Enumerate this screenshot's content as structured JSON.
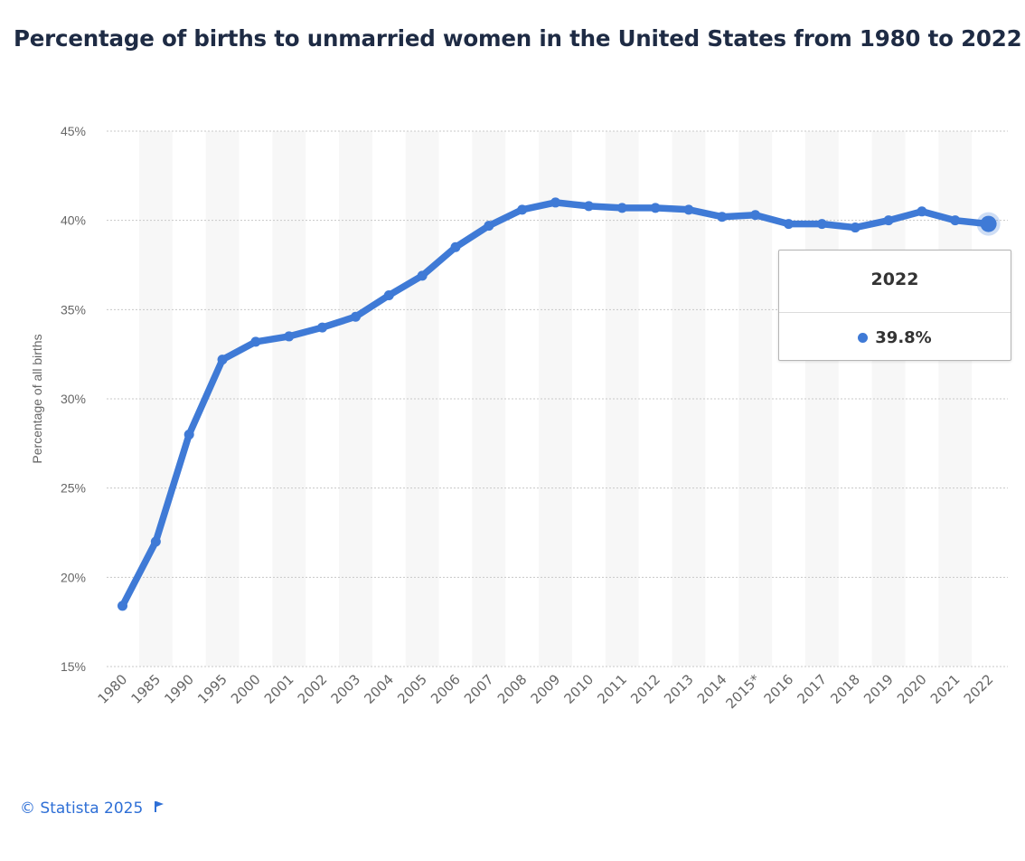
{
  "page": {
    "title": "Percentage of births to unmarried women in the United States from 1980 to 2022"
  },
  "chart_data": {
    "type": "line",
    "title": "Percentage of births to unmarried women in the United States from 1980 to 2022",
    "xlabel": "",
    "ylabel": "Percentage of all births",
    "ylim": [
      15,
      45
    ],
    "yticks": [
      15,
      20,
      25,
      30,
      35,
      40,
      45
    ],
    "ytick_labels": [
      "15%",
      "20%",
      "25%",
      "30%",
      "35%",
      "40%",
      "45%"
    ],
    "grid": true,
    "categories": [
      "1980",
      "1985",
      "1990",
      "1995",
      "2000",
      "2001",
      "2002",
      "2003",
      "2004",
      "2005",
      "2006",
      "2007",
      "2008",
      "2009",
      "2010",
      "2011",
      "2012",
      "2013",
      "2014",
      "2015*",
      "2016",
      "2017",
      "2018",
      "2019",
      "2020",
      "2021",
      "2022"
    ],
    "series": [
      {
        "name": "Percentage of all births",
        "values": [
          18.4,
          22.0,
          28.0,
          32.2,
          33.2,
          33.5,
          34.0,
          34.6,
          35.8,
          36.9,
          38.5,
          39.7,
          40.6,
          41.0,
          40.8,
          40.7,
          40.7,
          40.6,
          40.2,
          40.3,
          39.8,
          39.8,
          39.6,
          40.0,
          40.5,
          40.0,
          39.8
        ]
      }
    ],
    "highlight_index": 26
  },
  "tooltip": {
    "year": "2022",
    "value": "39.8%"
  },
  "footer": {
    "credit": "© Statista 2025"
  },
  "colors": {
    "line": "#3f7ad6",
    "title": "#1e2b44",
    "band": "#f7f7f7",
    "grid": "#c8c8c8",
    "tick": "#666666",
    "footer": "#2e6fd6"
  },
  "icons": {
    "footer_flag": "flag-icon"
  }
}
